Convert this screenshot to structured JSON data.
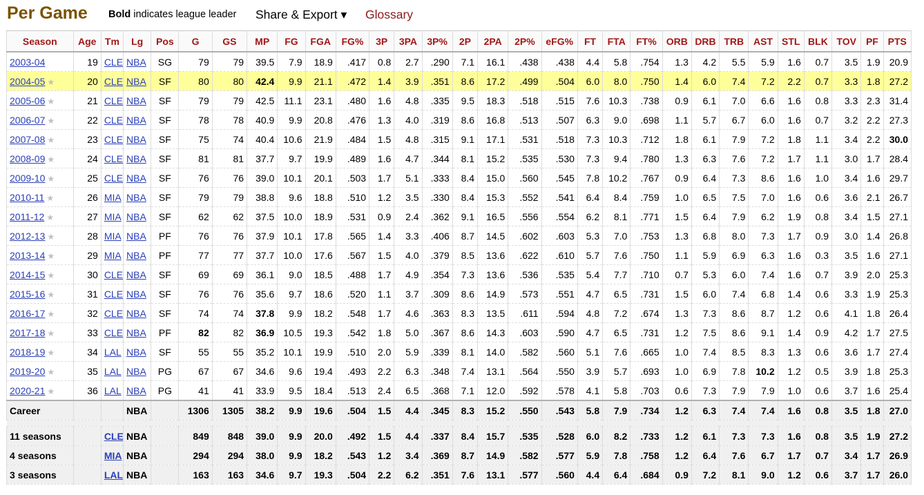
{
  "header": {
    "title": "Per Game",
    "legend_bold": "Bold",
    "legend_rest": "indicates league leader",
    "share_label": "Share & Export ▾",
    "glossary_label": "Glossary"
  },
  "table": {
    "columns": [
      "Season",
      "Age",
      "Tm",
      "Lg",
      "Pos",
      "G",
      "GS",
      "MP",
      "FG",
      "FGA",
      "FG%",
      "3P",
      "3PA",
      "3P%",
      "2P",
      "2PA",
      "2P%",
      "eFG%",
      "FT",
      "FTA",
      "FT%",
      "ORB",
      "DRB",
      "TRB",
      "AST",
      "STL",
      "BLK",
      "TOV",
      "PF",
      "PTS"
    ],
    "rows": [
      {
        "cells": [
          "2003-04",
          "19",
          "CLE",
          "NBA",
          "SG",
          "79",
          "79",
          "39.5",
          "7.9",
          "18.9",
          ".417",
          "0.8",
          "2.7",
          ".290",
          "7.1",
          "16.1",
          ".438",
          ".438",
          "4.4",
          "5.8",
          ".754",
          "1.3",
          "4.2",
          "5.5",
          "5.9",
          "1.6",
          "0.7",
          "3.5",
          "1.9",
          "20.9"
        ],
        "star": false,
        "bold": [],
        "highlight": false
      },
      {
        "cells": [
          "2004-05",
          "20",
          "CLE",
          "NBA",
          "SF",
          "80",
          "80",
          "42.4",
          "9.9",
          "21.1",
          ".472",
          "1.4",
          "3.9",
          ".351",
          "8.6",
          "17.2",
          ".499",
          ".504",
          "6.0",
          "8.0",
          ".750",
          "1.4",
          "6.0",
          "7.4",
          "7.2",
          "2.2",
          "0.7",
          "3.3",
          "1.8",
          "27.2"
        ],
        "star": true,
        "bold": [
          7
        ],
        "highlight": true
      },
      {
        "cells": [
          "2005-06",
          "21",
          "CLE",
          "NBA",
          "SF",
          "79",
          "79",
          "42.5",
          "11.1",
          "23.1",
          ".480",
          "1.6",
          "4.8",
          ".335",
          "9.5",
          "18.3",
          ".518",
          ".515",
          "7.6",
          "10.3",
          ".738",
          "0.9",
          "6.1",
          "7.0",
          "6.6",
          "1.6",
          "0.8",
          "3.3",
          "2.3",
          "31.4"
        ],
        "star": true,
        "bold": [],
        "highlight": false
      },
      {
        "cells": [
          "2006-07",
          "22",
          "CLE",
          "NBA",
          "SF",
          "78",
          "78",
          "40.9",
          "9.9",
          "20.8",
          ".476",
          "1.3",
          "4.0",
          ".319",
          "8.6",
          "16.8",
          ".513",
          ".507",
          "6.3",
          "9.0",
          ".698",
          "1.1",
          "5.7",
          "6.7",
          "6.0",
          "1.6",
          "0.7",
          "3.2",
          "2.2",
          "27.3"
        ],
        "star": true,
        "bold": [],
        "highlight": false
      },
      {
        "cells": [
          "2007-08",
          "23",
          "CLE",
          "NBA",
          "SF",
          "75",
          "74",
          "40.4",
          "10.6",
          "21.9",
          ".484",
          "1.5",
          "4.8",
          ".315",
          "9.1",
          "17.1",
          ".531",
          ".518",
          "7.3",
          "10.3",
          ".712",
          "1.8",
          "6.1",
          "7.9",
          "7.2",
          "1.8",
          "1.1",
          "3.4",
          "2.2",
          "30.0"
        ],
        "star": true,
        "bold": [
          29
        ],
        "highlight": false
      },
      {
        "cells": [
          "2008-09",
          "24",
          "CLE",
          "NBA",
          "SF",
          "81",
          "81",
          "37.7",
          "9.7",
          "19.9",
          ".489",
          "1.6",
          "4.7",
          ".344",
          "8.1",
          "15.2",
          ".535",
          ".530",
          "7.3",
          "9.4",
          ".780",
          "1.3",
          "6.3",
          "7.6",
          "7.2",
          "1.7",
          "1.1",
          "3.0",
          "1.7",
          "28.4"
        ],
        "star": true,
        "bold": [],
        "highlight": false
      },
      {
        "cells": [
          "2009-10",
          "25",
          "CLE",
          "NBA",
          "SF",
          "76",
          "76",
          "39.0",
          "10.1",
          "20.1",
          ".503",
          "1.7",
          "5.1",
          ".333",
          "8.4",
          "15.0",
          ".560",
          ".545",
          "7.8",
          "10.2",
          ".767",
          "0.9",
          "6.4",
          "7.3",
          "8.6",
          "1.6",
          "1.0",
          "3.4",
          "1.6",
          "29.7"
        ],
        "star": true,
        "bold": [],
        "highlight": false
      },
      {
        "cells": [
          "2010-11",
          "26",
          "MIA",
          "NBA",
          "SF",
          "79",
          "79",
          "38.8",
          "9.6",
          "18.8",
          ".510",
          "1.2",
          "3.5",
          ".330",
          "8.4",
          "15.3",
          ".552",
          ".541",
          "6.4",
          "8.4",
          ".759",
          "1.0",
          "6.5",
          "7.5",
          "7.0",
          "1.6",
          "0.6",
          "3.6",
          "2.1",
          "26.7"
        ],
        "star": true,
        "bold": [],
        "highlight": false
      },
      {
        "cells": [
          "2011-12",
          "27",
          "MIA",
          "NBA",
          "SF",
          "62",
          "62",
          "37.5",
          "10.0",
          "18.9",
          ".531",
          "0.9",
          "2.4",
          ".362",
          "9.1",
          "16.5",
          ".556",
          ".554",
          "6.2",
          "8.1",
          ".771",
          "1.5",
          "6.4",
          "7.9",
          "6.2",
          "1.9",
          "0.8",
          "3.4",
          "1.5",
          "27.1"
        ],
        "star": true,
        "bold": [],
        "highlight": false
      },
      {
        "cells": [
          "2012-13",
          "28",
          "MIA",
          "NBA",
          "PF",
          "76",
          "76",
          "37.9",
          "10.1",
          "17.8",
          ".565",
          "1.4",
          "3.3",
          ".406",
          "8.7",
          "14.5",
          ".602",
          ".603",
          "5.3",
          "7.0",
          ".753",
          "1.3",
          "6.8",
          "8.0",
          "7.3",
          "1.7",
          "0.9",
          "3.0",
          "1.4",
          "26.8"
        ],
        "star": true,
        "bold": [],
        "highlight": false
      },
      {
        "cells": [
          "2013-14",
          "29",
          "MIA",
          "NBA",
          "PF",
          "77",
          "77",
          "37.7",
          "10.0",
          "17.6",
          ".567",
          "1.5",
          "4.0",
          ".379",
          "8.5",
          "13.6",
          ".622",
          ".610",
          "5.7",
          "7.6",
          ".750",
          "1.1",
          "5.9",
          "6.9",
          "6.3",
          "1.6",
          "0.3",
          "3.5",
          "1.6",
          "27.1"
        ],
        "star": true,
        "bold": [],
        "highlight": false
      },
      {
        "cells": [
          "2014-15",
          "30",
          "CLE",
          "NBA",
          "SF",
          "69",
          "69",
          "36.1",
          "9.0",
          "18.5",
          ".488",
          "1.7",
          "4.9",
          ".354",
          "7.3",
          "13.6",
          ".536",
          ".535",
          "5.4",
          "7.7",
          ".710",
          "0.7",
          "5.3",
          "6.0",
          "7.4",
          "1.6",
          "0.7",
          "3.9",
          "2.0",
          "25.3"
        ],
        "star": true,
        "bold": [],
        "highlight": false
      },
      {
        "cells": [
          "2015-16",
          "31",
          "CLE",
          "NBA",
          "SF",
          "76",
          "76",
          "35.6",
          "9.7",
          "18.6",
          ".520",
          "1.1",
          "3.7",
          ".309",
          "8.6",
          "14.9",
          ".573",
          ".551",
          "4.7",
          "6.5",
          ".731",
          "1.5",
          "6.0",
          "7.4",
          "6.8",
          "1.4",
          "0.6",
          "3.3",
          "1.9",
          "25.3"
        ],
        "star": true,
        "bold": [],
        "highlight": false
      },
      {
        "cells": [
          "2016-17",
          "32",
          "CLE",
          "NBA",
          "SF",
          "74",
          "74",
          "37.8",
          "9.9",
          "18.2",
          ".548",
          "1.7",
          "4.6",
          ".363",
          "8.3",
          "13.5",
          ".611",
          ".594",
          "4.8",
          "7.2",
          ".674",
          "1.3",
          "7.3",
          "8.6",
          "8.7",
          "1.2",
          "0.6",
          "4.1",
          "1.8",
          "26.4"
        ],
        "star": true,
        "bold": [
          7
        ],
        "highlight": false
      },
      {
        "cells": [
          "2017-18",
          "33",
          "CLE",
          "NBA",
          "PF",
          "82",
          "82",
          "36.9",
          "10.5",
          "19.3",
          ".542",
          "1.8",
          "5.0",
          ".367",
          "8.6",
          "14.3",
          ".603",
          ".590",
          "4.7",
          "6.5",
          ".731",
          "1.2",
          "7.5",
          "8.6",
          "9.1",
          "1.4",
          "0.9",
          "4.2",
          "1.7",
          "27.5"
        ],
        "star": true,
        "bold": [
          5,
          7
        ],
        "highlight": false
      },
      {
        "cells": [
          "2018-19",
          "34",
          "LAL",
          "NBA",
          "SF",
          "55",
          "55",
          "35.2",
          "10.1",
          "19.9",
          ".510",
          "2.0",
          "5.9",
          ".339",
          "8.1",
          "14.0",
          ".582",
          ".560",
          "5.1",
          "7.6",
          ".665",
          "1.0",
          "7.4",
          "8.5",
          "8.3",
          "1.3",
          "0.6",
          "3.6",
          "1.7",
          "27.4"
        ],
        "star": true,
        "bold": [],
        "highlight": false
      },
      {
        "cells": [
          "2019-20",
          "35",
          "LAL",
          "NBA",
          "PG",
          "67",
          "67",
          "34.6",
          "9.6",
          "19.4",
          ".493",
          "2.2",
          "6.3",
          ".348",
          "7.4",
          "13.1",
          ".564",
          ".550",
          "3.9",
          "5.7",
          ".693",
          "1.0",
          "6.9",
          "7.8",
          "10.2",
          "1.2",
          "0.5",
          "3.9",
          "1.8",
          "25.3"
        ],
        "star": true,
        "bold": [
          24
        ],
        "highlight": false
      },
      {
        "cells": [
          "2020-21",
          "36",
          "LAL",
          "NBA",
          "PG",
          "41",
          "41",
          "33.9",
          "9.5",
          "18.4",
          ".513",
          "2.4",
          "6.5",
          ".368",
          "7.1",
          "12.0",
          ".592",
          ".578",
          "4.1",
          "5.8",
          ".703",
          "0.6",
          "7.3",
          "7.9",
          "7.9",
          "1.0",
          "0.6",
          "3.7",
          "1.6",
          "25.4"
        ],
        "star": true,
        "bold": [],
        "highlight": false
      }
    ],
    "summary": [
      {
        "cells": [
          "Career",
          "",
          "",
          "NBA",
          "",
          "1306",
          "1305",
          "38.2",
          "9.9",
          "19.6",
          ".504",
          "1.5",
          "4.4",
          ".345",
          "8.3",
          "15.2",
          ".550",
          ".543",
          "5.8",
          "7.9",
          ".734",
          "1.2",
          "6.3",
          "7.4",
          "7.4",
          "1.6",
          "0.8",
          "3.5",
          "1.8",
          "27.0"
        ]
      },
      {
        "cells": [
          "11 seasons",
          "",
          "CLE",
          "NBA",
          "",
          "849",
          "848",
          "39.0",
          "9.9",
          "20.0",
          ".492",
          "1.5",
          "4.4",
          ".337",
          "8.4",
          "15.7",
          ".535",
          ".528",
          "6.0",
          "8.2",
          ".733",
          "1.2",
          "6.1",
          "7.3",
          "7.3",
          "1.6",
          "0.8",
          "3.5",
          "1.9",
          "27.2"
        ]
      },
      {
        "cells": [
          "4 seasons",
          "",
          "MIA",
          "NBA",
          "",
          "294",
          "294",
          "38.0",
          "9.9",
          "18.2",
          ".543",
          "1.2",
          "3.4",
          ".369",
          "8.7",
          "14.9",
          ".582",
          ".577",
          "5.9",
          "7.8",
          ".758",
          "1.2",
          "6.4",
          "7.6",
          "6.7",
          "1.7",
          "0.7",
          "3.4",
          "1.7",
          "26.9"
        ]
      },
      {
        "cells": [
          "3 seasons",
          "",
          "LAL",
          "NBA",
          "",
          "163",
          "163",
          "34.6",
          "9.7",
          "19.3",
          ".504",
          "2.2",
          "6.2",
          ".351",
          "7.6",
          "13.1",
          ".577",
          ".560",
          "4.4",
          "6.4",
          ".684",
          "0.9",
          "7.2",
          "8.1",
          "9.0",
          "1.2",
          "0.6",
          "3.7",
          "1.7",
          "26.0"
        ]
      }
    ]
  }
}
